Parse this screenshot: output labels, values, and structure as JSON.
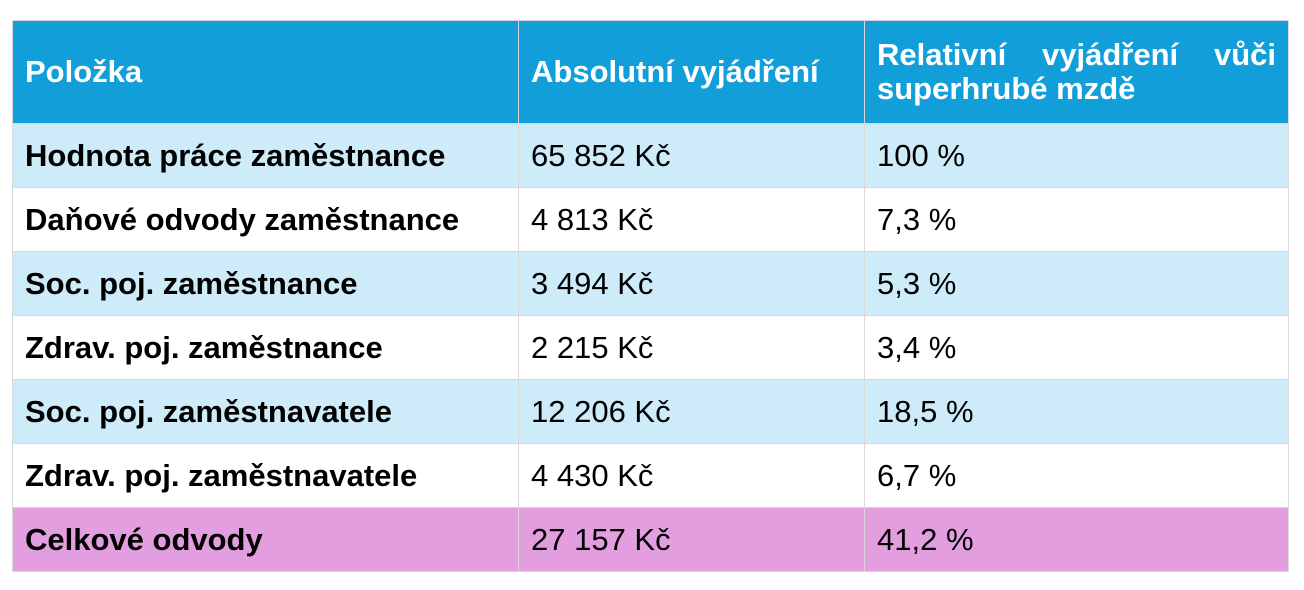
{
  "table": {
    "headers": [
      "Položka",
      "Absolutní vyjádření",
      "Relativní vyjádření vůči superhrubé mzdě"
    ],
    "rows": [
      [
        "Hodnota práce zaměstnance",
        "65 852 Kč",
        "100 %"
      ],
      [
        "Daňové odvody zaměstnance",
        "4 813 Kč",
        "7,3 %"
      ],
      [
        "Soc. poj. zaměstnance",
        "3 494 Kč",
        "5,3 %"
      ],
      [
        "Zdrav. poj. zaměstnance",
        "2 215 Kč",
        "3,4 %"
      ],
      [
        "Soc. poj. zaměstnavatele",
        "12 206 Kč",
        "18,5 %"
      ],
      [
        "Zdrav. poj. zaměstnavatele",
        "4 430 Kč",
        "6,7 %"
      ],
      [
        "Celkové odvody",
        "27 157 Kč",
        "41,2 %"
      ]
    ]
  },
  "colors": {
    "header": "#129fd9",
    "row_alt": "#cdebf9",
    "row_plain": "#ffffff",
    "row_total": "#e29ede"
  }
}
